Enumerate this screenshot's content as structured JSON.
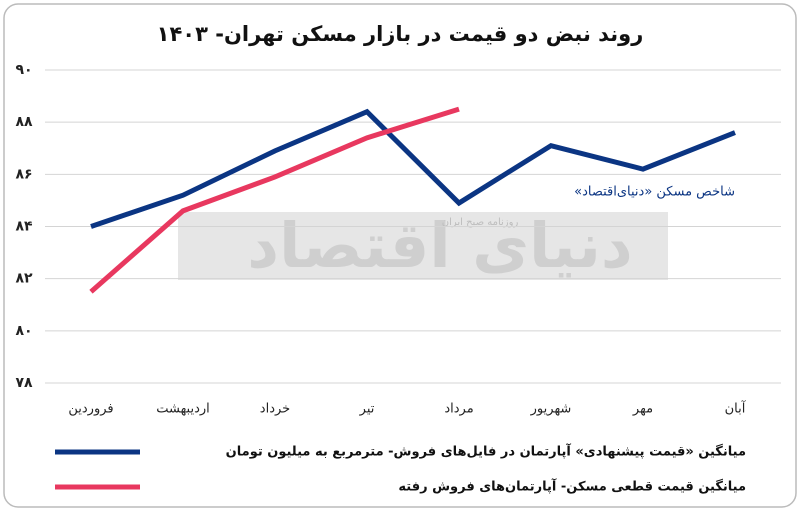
{
  "chart_data": {
    "type": "line",
    "title": "روند نبض دو قیمت در بازار مسکن تهران- ۱۴۰۳",
    "categories": [
      "فروردین",
      "اردیبهشت",
      "خرداد",
      "تیر",
      "مرداد",
      "شهریور",
      "مهر",
      "آبان"
    ],
    "series": [
      {
        "name": "میانگین «قیمت پیشنهادی» آپارتمان در فایل‌های فروش- مترمربع به میلیون تومان",
        "color": "#0b3583",
        "values": [
          84,
          85.2,
          86.9,
          88.4,
          84.9,
          87.1,
          86.2,
          87.6
        ]
      },
      {
        "name": "میانگین قیمت قطعی مسکن- آپارتمان‌های فروش رفته",
        "color": "#e8385f",
        "values": [
          81.5,
          84.6,
          85.9,
          87.4,
          88.5,
          null,
          null,
          null
        ]
      }
    ],
    "ylim": [
      78,
      90
    ],
    "yticks": [
      {
        "value": 78,
        "label": "۷۸"
      },
      {
        "value": 80,
        "label": "۸۰"
      },
      {
        "value": 82,
        "label": "۸۲"
      },
      {
        "value": 84,
        "label": "۸۴"
      },
      {
        "value": 86,
        "label": "۸۶"
      },
      {
        "value": 88,
        "label": "۸۸"
      },
      {
        "value": 90,
        "label": "۹۰"
      }
    ],
    "grid": true,
    "annotation": "شاخص مسکن «دنیای‌اقتصاد»",
    "watermark": "دنیای اقتصاد",
    "watermark_sub": "روزنامه صبح ایران"
  }
}
